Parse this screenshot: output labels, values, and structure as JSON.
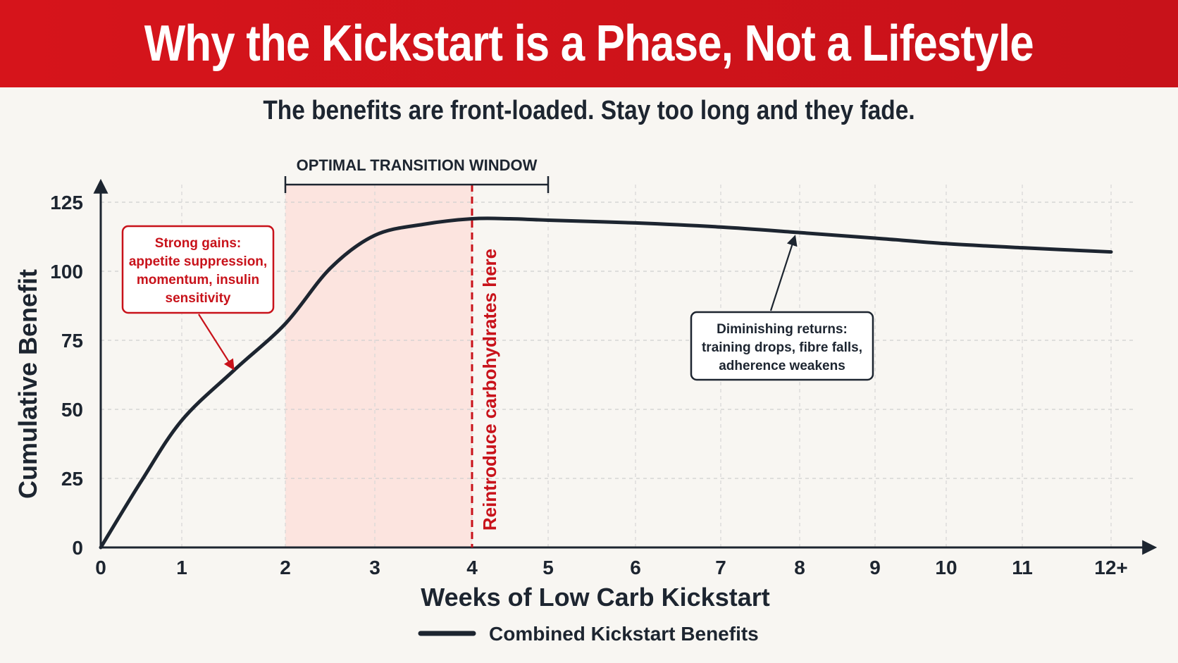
{
  "header": {
    "title": "Why the Kickstart is a Phase, Not a Lifestyle",
    "subtitle": "The benefits are front-loaded. Stay too long and they fade."
  },
  "colors": {
    "banner": "#d6141b",
    "accent_red": "#c8121a",
    "line": "#1d2530",
    "window_fill": "#fde0dc",
    "background": "#f8f6f2"
  },
  "chart_data": {
    "type": "line",
    "xlabel": "Weeks of Low Carb Kickstart",
    "ylabel": "Cumulative Benefit",
    "x_categories": [
      "0",
      "1",
      "2",
      "3",
      "4",
      "5",
      "6",
      "7",
      "8",
      "9",
      "10",
      "11",
      "12+"
    ],
    "ylim": [
      0,
      125
    ],
    "y_ticks": [
      0,
      25,
      50,
      75,
      100,
      125
    ],
    "grid": true,
    "series": [
      {
        "name": "Combined Kickstart Benefits",
        "x": [
          0,
          0.5,
          1,
          1.5,
          2,
          2.5,
          3,
          3.5,
          4,
          4.5,
          5,
          6,
          7,
          8,
          9,
          10,
          11,
          12
        ],
        "y": [
          0,
          24,
          46,
          64,
          81,
          101,
          113,
          117,
          119,
          119,
          118.5,
          117.5,
          116,
          114,
          112,
          110,
          108.5,
          107
        ]
      }
    ],
    "annotations": {
      "window": {
        "label": "OPTIMAL TRANSITION WINDOW",
        "x_start": 2,
        "x_end": 5,
        "shaded_start": 2,
        "shaded_end": 4
      },
      "vline": {
        "x": 4,
        "label": "Reintroduce carbohydrates here"
      },
      "early_note": {
        "lines": [
          "Strong gains:",
          "appetite suppression,",
          "momentum, insulin",
          "sensitivity"
        ],
        "points_to_x": 1.5
      },
      "late_note": {
        "lines": [
          "Diminishing returns:",
          "training drops, fibre falls,",
          "adherence weakens"
        ],
        "points_to_x": 8
      }
    },
    "legend": {
      "position": "bottom-center",
      "label": "Combined Kickstart Benefits"
    }
  }
}
